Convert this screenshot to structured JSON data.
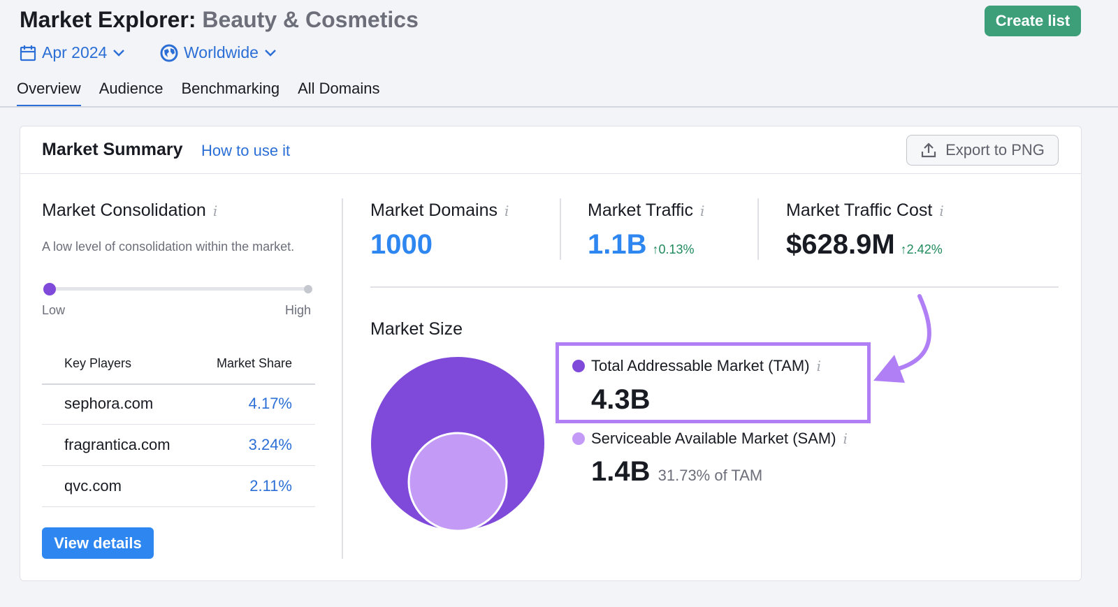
{
  "header": {
    "title": "Market Explorer:",
    "subtitle": "Beauty & Cosmetics",
    "date": "Apr 2024",
    "region": "Worldwide",
    "create_label": "Create list"
  },
  "tabs": [
    {
      "label": "Overview",
      "active": true
    },
    {
      "label": "Audience"
    },
    {
      "label": "Benchmarking"
    },
    {
      "label": "All Domains"
    }
  ],
  "summary": {
    "title": "Market Summary",
    "how_to": "How to use it",
    "export_label": "Export to PNG"
  },
  "consolidation": {
    "title": "Market Consolidation",
    "description": "A low level of consolidation within the market.",
    "level": 0.02,
    "low": "Low",
    "high": "High"
  },
  "players": {
    "col1": "Key Players",
    "col2": "Market Share",
    "rows": [
      {
        "domain": "sephora.com",
        "share": "4.17%"
      },
      {
        "domain": "fragrantica.com",
        "share": "3.24%"
      },
      {
        "domain": "qvc.com",
        "share": "2.11%"
      }
    ],
    "view_details": "View details"
  },
  "metrics": {
    "domains": {
      "label": "Market Domains",
      "value": "1000"
    },
    "traffic": {
      "label": "Market Traffic",
      "value": "1.1B",
      "delta": "↑0.13%"
    },
    "cost": {
      "label": "Market Traffic Cost",
      "value": "$628.9M",
      "delta": "↑2.42%"
    }
  },
  "market_size": {
    "title": "Market Size",
    "tam": {
      "label": "Total Addressable Market (TAM)",
      "value": "4.3B"
    },
    "sam": {
      "label": "Serviceable Available Market (SAM)",
      "value": "1.4B",
      "pct": "31.73% of TAM"
    }
  },
  "colors": {
    "tam": "#7f4ad9",
    "sam": "#c39bf7",
    "accent": "#2b6fd6",
    "highlight": "#b07ff5",
    "positive": "#1e8a5c"
  }
}
